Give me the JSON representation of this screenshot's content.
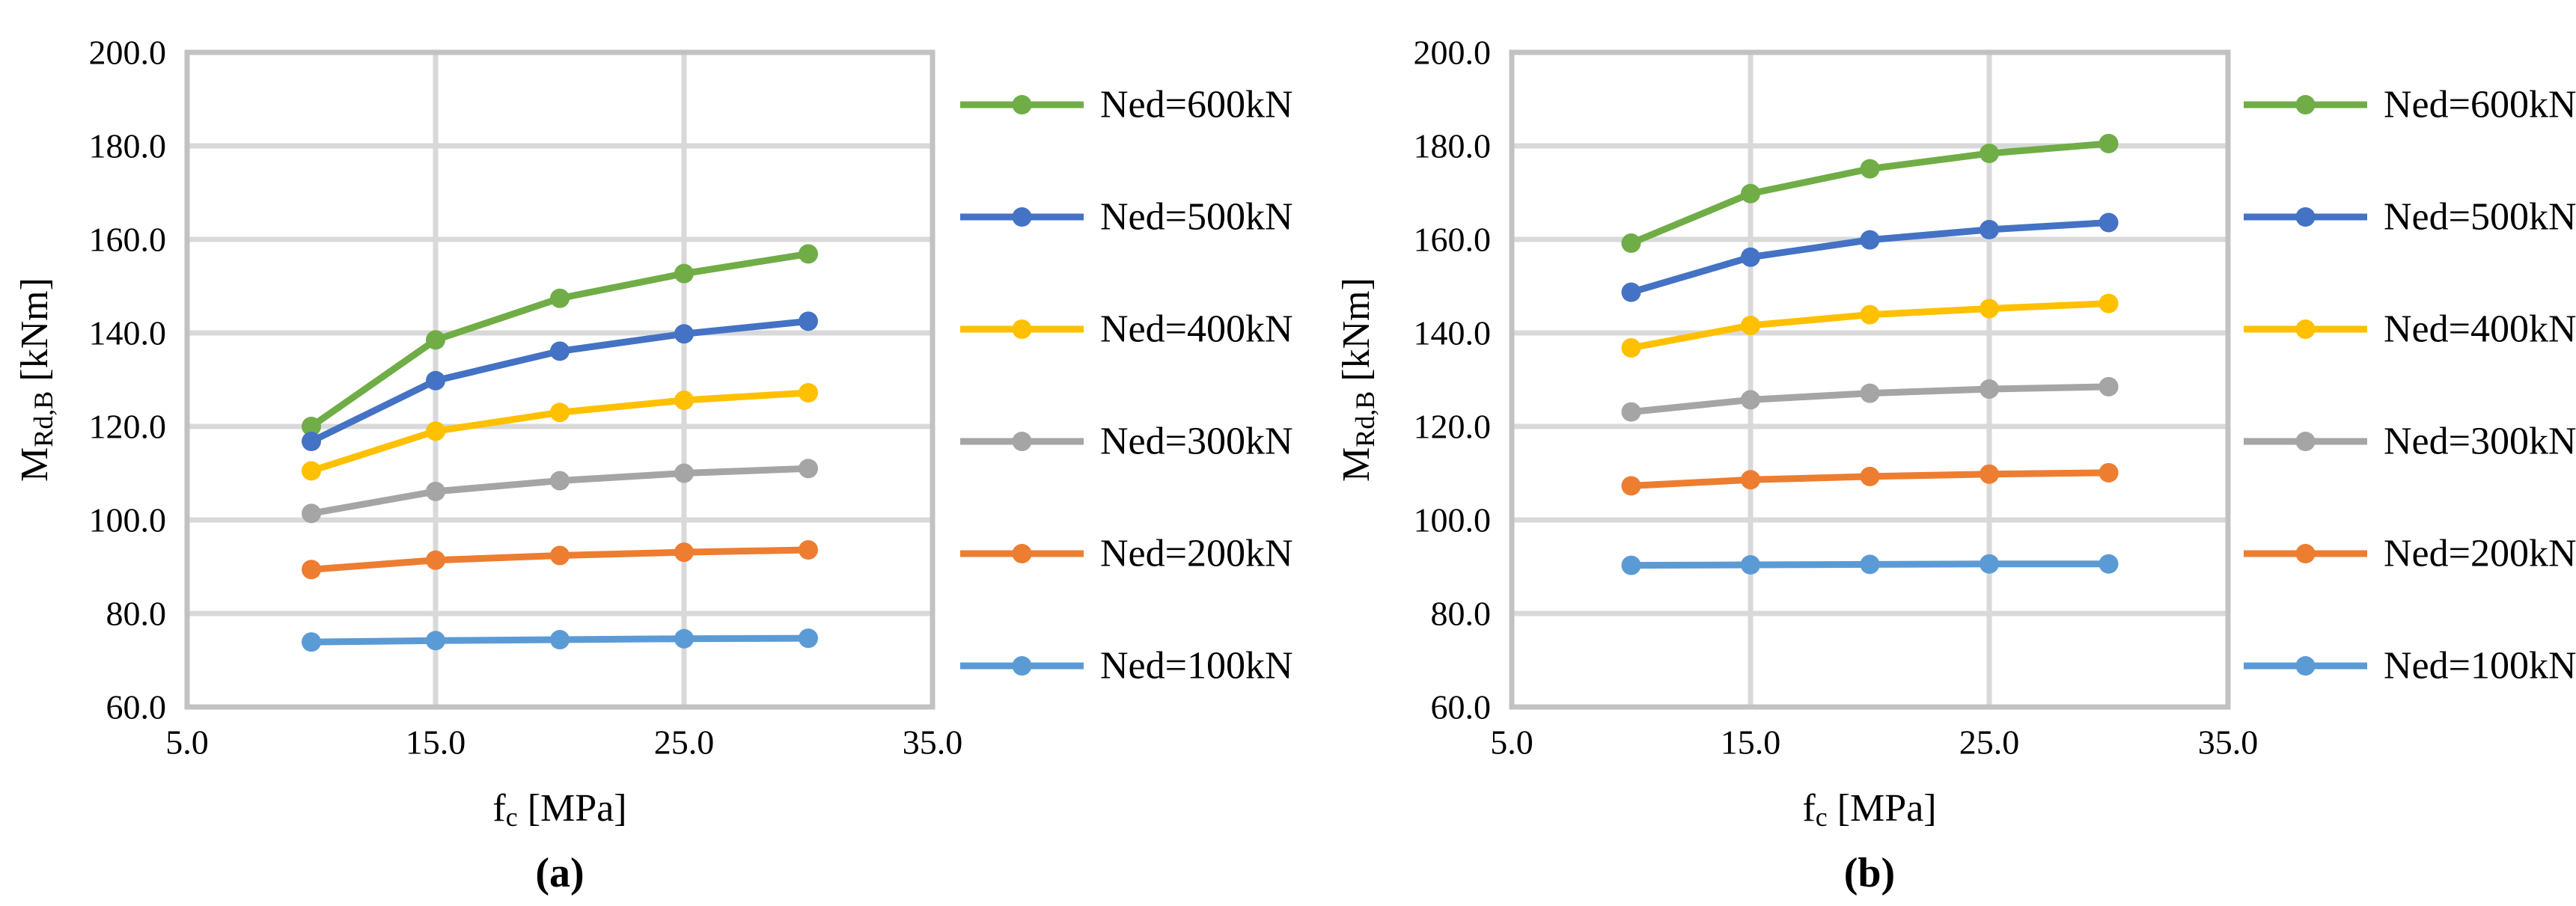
{
  "figure": {
    "background": "#ffffff",
    "text_color": "#000000",
    "gridline_color": "#D9D9D9",
    "axis_color": "#C2C2C2",
    "legend_position": "right"
  },
  "chart_data": [
    {
      "id": "a",
      "type": "line",
      "caption": "(a)",
      "xlabel": {
        "base": "f",
        "sub": "c",
        "rest": " [MPa]"
      },
      "ylabel": {
        "base": "M",
        "sub": "Rd,B",
        "rest": " [kNm]"
      },
      "x": [
        10,
        15,
        20,
        25,
        30
      ],
      "xlim": [
        5,
        35
      ],
      "ylim": [
        60,
        200
      ],
      "x_tick_values": [
        5,
        15,
        25,
        35
      ],
      "x_tick_labels": [
        "5.0",
        "15.0",
        "25.0",
        "35.0"
      ],
      "x_gridline_values": [
        15,
        25
      ],
      "y_tick_values": [
        200,
        180,
        160,
        140,
        120,
        100,
        80,
        60
      ],
      "y_tick_labels": [
        "200.0",
        "180.0",
        "160.0",
        "140.0",
        "120.0",
        "100.0",
        "80.0",
        "60.0"
      ],
      "grid": "horizontal every 20, vertical at 15 and 25, plot border box",
      "series": [
        {
          "name": "Ned=600kN",
          "color": "#70AD47",
          "values": [
            120.0,
            138.5,
            147.4,
            152.7,
            156.9
          ]
        },
        {
          "name": "Ned=500kN",
          "color": "#4472C4",
          "values": [
            116.8,
            129.8,
            136.1,
            139.8,
            142.5
          ]
        },
        {
          "name": "Ned=400kN",
          "color": "#FFC000",
          "values": [
            110.5,
            119.0,
            123.0,
            125.6,
            127.2
          ]
        },
        {
          "name": "Ned=300kN",
          "color": "#A5A5A5",
          "values": [
            101.4,
            106.1,
            108.4,
            110.0,
            111.0
          ]
        },
        {
          "name": "Ned=200kN",
          "color": "#ED7D31",
          "values": [
            89.4,
            91.4,
            92.4,
            93.1,
            93.6
          ]
        },
        {
          "name": "Ned=100kN",
          "color": "#5B9BD5",
          "values": [
            73.9,
            74.2,
            74.4,
            74.6,
            74.7
          ]
        }
      ]
    },
    {
      "id": "b",
      "type": "line",
      "caption": "(b)",
      "xlabel": {
        "base": "f",
        "sub": "c",
        "rest": " [MPa]"
      },
      "ylabel": {
        "base": "M",
        "sub": "Rd,B",
        "rest": " [kNm]"
      },
      "x": [
        10,
        15,
        20,
        25,
        30
      ],
      "xlim": [
        5,
        35
      ],
      "ylim": [
        60,
        200
      ],
      "x_tick_values": [
        5,
        15,
        25,
        35
      ],
      "x_tick_labels": [
        "5.0",
        "15.0",
        "25.0",
        "35.0"
      ],
      "x_gridline_values": [
        15,
        25
      ],
      "y_tick_values": [
        200,
        180,
        160,
        140,
        120,
        100,
        80,
        60
      ],
      "y_tick_labels": [
        "200.0",
        "180.0",
        "160.0",
        "140.0",
        "120.0",
        "100.0",
        "80.0",
        "60.0"
      ],
      "grid": "horizontal every 20, vertical at 15 and 25, plot border box",
      "series": [
        {
          "name": "Ned=600kN",
          "color": "#70AD47",
          "values": [
            159.2,
            169.8,
            175.1,
            178.4,
            180.5
          ]
        },
        {
          "name": "Ned=500kN",
          "color": "#4472C4",
          "values": [
            148.7,
            156.2,
            159.9,
            162.1,
            163.6
          ]
        },
        {
          "name": "Ned=400kN",
          "color": "#FFC000",
          "values": [
            136.8,
            141.6,
            143.9,
            145.2,
            146.3
          ]
        },
        {
          "name": "Ned=300kN",
          "color": "#A5A5A5",
          "values": [
            123.1,
            125.7,
            127.1,
            128.0,
            128.5
          ]
        },
        {
          "name": "Ned=200kN",
          "color": "#ED7D31",
          "values": [
            107.3,
            108.6,
            109.3,
            109.8,
            110.1
          ]
        },
        {
          "name": "Ned=100kN",
          "color": "#5B9BD5",
          "values": [
            90.3,
            90.4,
            90.5,
            90.6,
            90.6
          ]
        }
      ]
    }
  ]
}
